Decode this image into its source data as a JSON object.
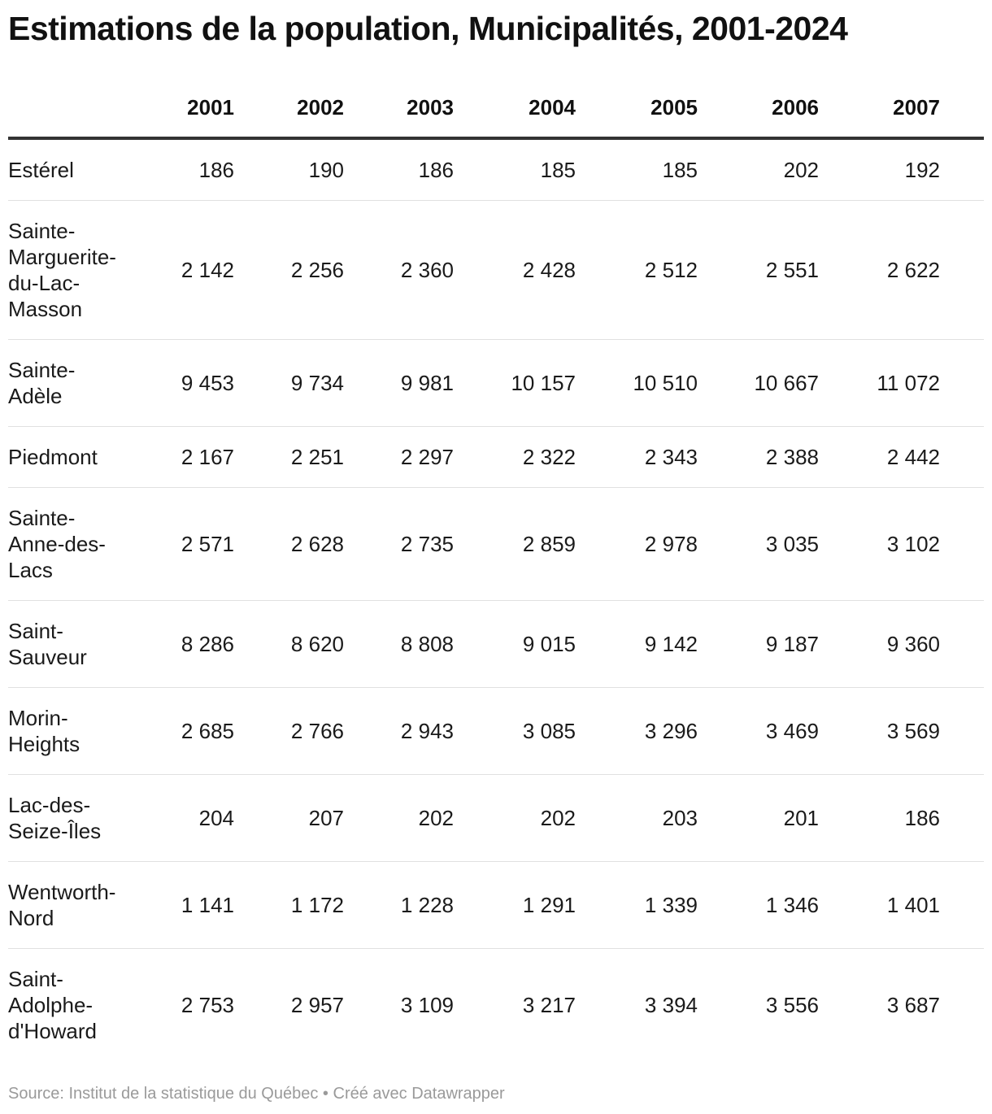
{
  "title": "Estimations de la population, Municipalités, 2001-2024",
  "footer": {
    "source_label": "Source:",
    "source_name": "Institut de la statistique du Québec",
    "separator": "•",
    "credit": "Créé avec Datawrapper"
  },
  "chart_data": {
    "type": "table",
    "title": "Estimations de la population, Municipalités, 2001-2024",
    "columns": [
      "",
      "2001",
      "2002",
      "2003",
      "2004",
      "2005",
      "2006",
      "2007"
    ],
    "rows": [
      {
        "name": "Estérel",
        "values": [
          "186",
          "190",
          "186",
          "185",
          "185",
          "202",
          "192"
        ]
      },
      {
        "name": "Sainte-Marguerite-du-Lac-Masson",
        "values": [
          "2 142",
          "2 256",
          "2 360",
          "2 428",
          "2 512",
          "2 551",
          "2 622"
        ]
      },
      {
        "name": "Sainte-Adèle",
        "values": [
          "9 453",
          "9 734",
          "9 981",
          "10 157",
          "10 510",
          "10 667",
          "11 072"
        ]
      },
      {
        "name": "Piedmont",
        "values": [
          "2 167",
          "2 251",
          "2 297",
          "2 322",
          "2 343",
          "2 388",
          "2 442"
        ]
      },
      {
        "name": "Sainte-Anne-des-Lacs",
        "values": [
          "2 571",
          "2 628",
          "2 735",
          "2 859",
          "2 978",
          "3 035",
          "3 102"
        ]
      },
      {
        "name": "Saint-Sauveur",
        "values": [
          "8 286",
          "8 620",
          "8 808",
          "9 015",
          "9 142",
          "9 187",
          "9 360"
        ]
      },
      {
        "name": "Morin-Heights",
        "values": [
          "2 685",
          "2 766",
          "2 943",
          "3 085",
          "3 296",
          "3 469",
          "3 569"
        ]
      },
      {
        "name": "Lac-des-Seize-Îles",
        "values": [
          "204",
          "207",
          "202",
          "202",
          "203",
          "201",
          "186"
        ]
      },
      {
        "name": "Wentworth-Nord",
        "values": [
          "1 141",
          "1 172",
          "1 228",
          "1 291",
          "1 339",
          "1 346",
          "1 401"
        ]
      },
      {
        "name": "Saint-Adolphe-d'Howard",
        "values": [
          "2 753",
          "2 957",
          "3 109",
          "3 217",
          "3 394",
          "3 556",
          "3 687"
        ]
      }
    ]
  }
}
